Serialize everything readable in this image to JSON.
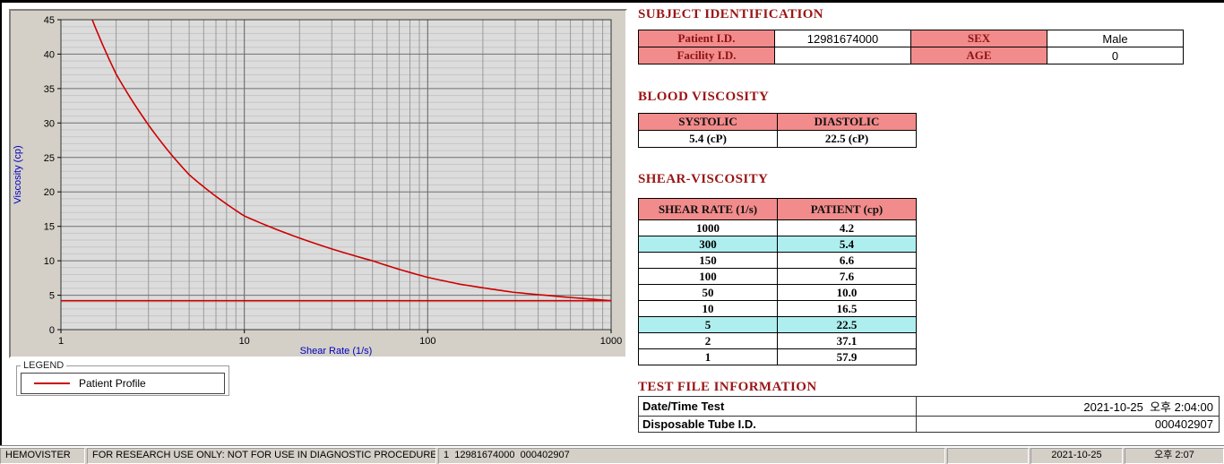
{
  "titles": {
    "subject": "SUBJECT IDENTIFICATION",
    "blood": "BLOOD VISCOSITY",
    "shear": "SHEAR-VISCOSITY",
    "testfile": "TEST FILE INFORMATION"
  },
  "subject": {
    "patient_id_label": "Patient I.D.",
    "patient_id": "12981674000",
    "sex_label": "SEX",
    "sex": "Male",
    "facility_id_label": "Facility I.D.",
    "facility_id": "",
    "age_label": "AGE",
    "age": "0"
  },
  "blood": {
    "systolic_label": "SYSTOLIC",
    "diastolic_label": "DIASTOLIC",
    "systolic": "5.4 (cP)",
    "diastolic": "22.5 (cP)"
  },
  "shear_table": {
    "col1": "SHEAR RATE (1/s)",
    "col2": "PATIENT (cp)",
    "highlight_color": "#aeeeee",
    "rows": [
      {
        "rate": "1000",
        "value": "4.2",
        "highlight": false
      },
      {
        "rate": "300",
        "value": "5.4",
        "highlight": true
      },
      {
        "rate": "150",
        "value": "6.6",
        "highlight": false
      },
      {
        "rate": "100",
        "value": "7.6",
        "highlight": false
      },
      {
        "rate": "50",
        "value": "10.0",
        "highlight": false
      },
      {
        "rate": "10",
        "value": "16.5",
        "highlight": false
      },
      {
        "rate": "5",
        "value": "22.5",
        "highlight": true
      },
      {
        "rate": "2",
        "value": "37.1",
        "highlight": false
      },
      {
        "rate": "1",
        "value": "57.9",
        "highlight": false
      }
    ]
  },
  "testfile": {
    "datetime_label": "Date/Time Test",
    "datetime": "2021-10-25  오후 2:04:00",
    "tube_label": "Disposable Tube I.D.",
    "tube": "000402907"
  },
  "legend": {
    "title": "LEGEND",
    "item": "Patient Profile"
  },
  "chart_data": {
    "type": "line",
    "title": "",
    "xlabel": "Shear Rate (1/s)",
    "ylabel": "Viscosity (cp)",
    "xscale": "log",
    "xlim": [
      1,
      1000
    ],
    "ylim": [
      0,
      45
    ],
    "xticks": [
      1,
      10,
      100,
      1000
    ],
    "yticks": [
      0,
      5,
      10,
      15,
      20,
      25,
      30,
      35,
      40,
      45
    ],
    "grid": true,
    "legend_position": "below-left",
    "series": [
      {
        "name": "Patient Profile",
        "x": [
          1,
          2,
          5,
          10,
          50,
          100,
          150,
          300,
          1000
        ],
        "y": [
          57.9,
          37.1,
          22.5,
          16.5,
          10.0,
          7.6,
          6.6,
          5.4,
          4.2
        ],
        "color": "#cc0000"
      }
    ],
    "reference_line": {
      "y": 4.2,
      "color": "#cc0000"
    }
  },
  "colors": {
    "section_title": "#9a1515",
    "table_header_pink": "#f28b8b",
    "row_highlight": "#aeeeee",
    "curve_red": "#cc0000",
    "axis_label_blue": "#0000c0",
    "panel_gray": "#d4d0c8"
  },
  "statusbar": {
    "app": "HEMOVISTER",
    "notice": "FOR RESEARCH USE ONLY: NOT FOR USE IN DIAGNOSTIC PROCEDURES",
    "record": "1  12981674000  000402907",
    "date": "2021-10-25",
    "time": "오후 2:07"
  }
}
